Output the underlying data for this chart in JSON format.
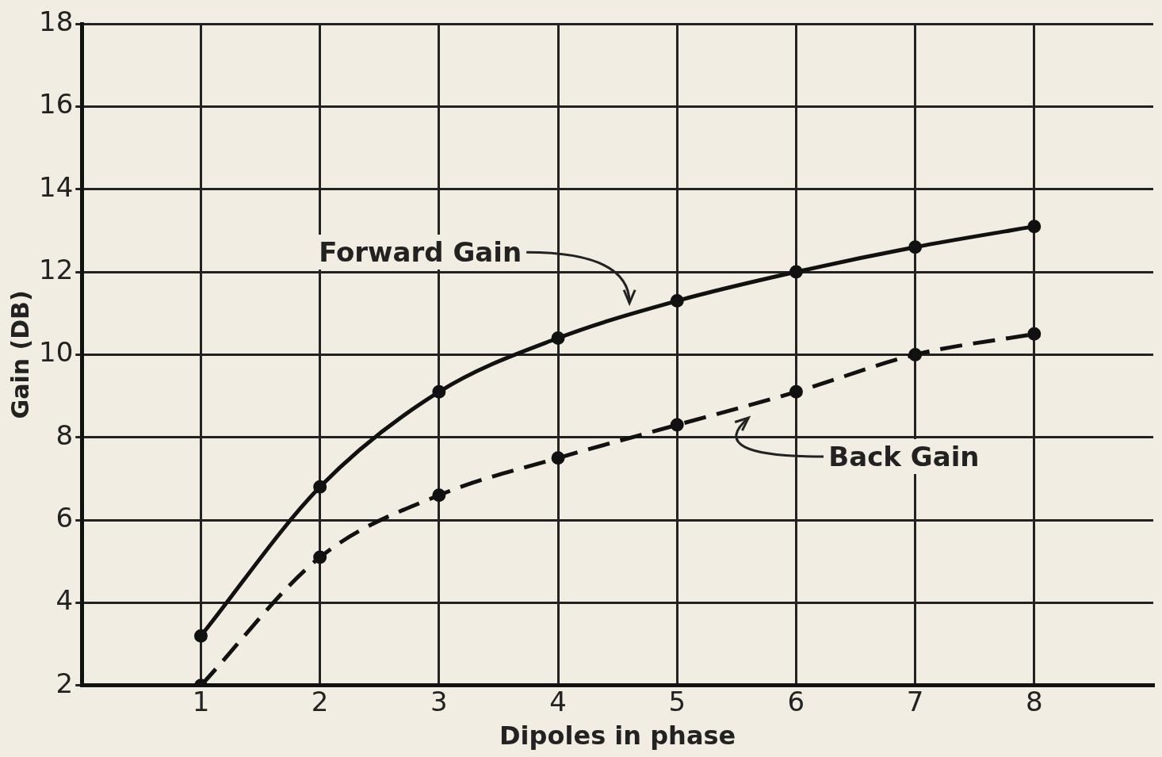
{
  "chart_data": {
    "type": "line",
    "xlabel": "Dipoles in phase",
    "ylabel": "Gain (DB)",
    "x": [
      1,
      2,
      3,
      4,
      5,
      6,
      7,
      8
    ],
    "series": [
      {
        "name": "Forward Gain",
        "color": "#111111",
        "line_style": "solid",
        "values": [
          3.2,
          6.8,
          9.1,
          10.4,
          11.3,
          12.0,
          12.6,
          13.1
        ]
      },
      {
        "name": "Back Gain",
        "color": "#111111",
        "line_style": "dashed",
        "values": [
          2.0,
          5.1,
          6.6,
          7.5,
          8.3,
          9.1,
          10.0,
          10.5
        ]
      }
    ],
    "xlim": [
      0,
      9
    ],
    "xticks": [
      1,
      2,
      3,
      4,
      5,
      6,
      7,
      8
    ],
    "ylim": [
      2,
      18
    ],
    "yticks": [
      2,
      4,
      6,
      8,
      10,
      12,
      14,
      16,
      18
    ],
    "grid": true,
    "legend": false,
    "marker": "circle"
  }
}
